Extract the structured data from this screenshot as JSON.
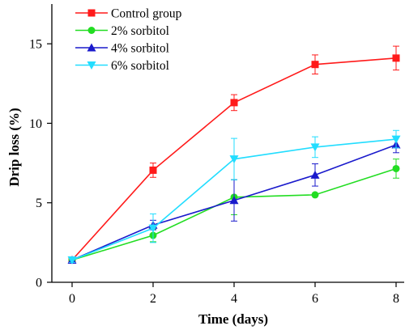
{
  "chart_data": {
    "type": "line",
    "xlabel": "Time (days)",
    "ylabel": "Drip loss (%)",
    "xlim": [
      -0.5,
      8.2
    ],
    "ylim": [
      0,
      17.5
    ],
    "xticks": [
      0,
      2,
      4,
      6,
      8
    ],
    "yticks": [
      0,
      5,
      10,
      15
    ],
    "x": [
      0,
      2,
      4,
      6,
      8
    ],
    "grid": false,
    "legend_position": "top-left",
    "series": [
      {
        "name": "Control group",
        "color": "#ff1a1a",
        "marker": "square",
        "values": [
          1.4,
          7.05,
          11.3,
          13.7,
          14.1
        ],
        "errors": [
          0.15,
          0.45,
          0.5,
          0.6,
          0.75
        ]
      },
      {
        "name": "2% sorbitol",
        "color": "#22dd22",
        "marker": "circle",
        "values": [
          1.4,
          2.95,
          5.35,
          5.5,
          7.15
        ],
        "errors": [
          0.15,
          0.4,
          1.1,
          0.0,
          0.6
        ]
      },
      {
        "name": "4% sorbitol",
        "color": "#1a1acc",
        "marker": "triangle-up",
        "values": [
          1.4,
          3.6,
          5.15,
          6.75,
          8.65
        ],
        "errors": [
          0.15,
          0.3,
          1.3,
          0.7,
          0.5
        ]
      },
      {
        "name": "6% sorbitol",
        "color": "#22ddff",
        "marker": "triangle-down",
        "values": [
          1.4,
          3.4,
          7.75,
          8.5,
          9.0
        ],
        "errors": [
          0.15,
          0.9,
          1.3,
          0.65,
          0.55
        ]
      }
    ]
  }
}
